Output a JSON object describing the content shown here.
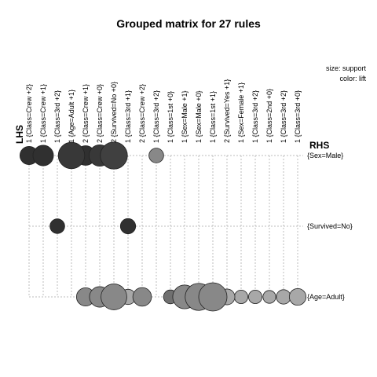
{
  "chart_data": {
    "type": "grouped_matrix_bubble",
    "title": "Grouped matrix for 27 rules",
    "lhs_label": "LHS",
    "rhs_label": "RHS",
    "legend": {
      "size": "size: support",
      "color": "color: lift"
    },
    "lhs_groups": [
      "1 {Class=Crew +2}",
      "1 {Class=Crew +1}",
      "1 {Class=3rd +2}",
      "1 {Age=Adult +1}",
      "2 {Class=Crew +1}",
      "2 {Class=Crew +0}",
      "2 {Survived=No +0}",
      "1 {Class=3rd +1}",
      "2 {Class=Crew +2}",
      "1 {Class=3rd +2}",
      "1 {Class=1st +0}",
      "1 {Sex=Male +1}",
      "1 {Sex=Male +0}",
      "1 {Class=1st +1}",
      "2 {Survived=Yes +1}",
      "1 {Sex=Female +1}",
      "1 {Class=3rd +2}",
      "1 {Class=2nd +0}",
      "1 {Class=3rd +2}",
      "1 {Class=3rd +0}"
    ],
    "rhs_items": [
      "{Sex=Male}",
      "{Survived=No}",
      "{Age=Adult}"
    ],
    "cells": [
      {
        "lhs": 0,
        "rhs": 0,
        "support": 0.33,
        "lift": 0.95
      },
      {
        "lhs": 1,
        "rhs": 0,
        "support": 0.45,
        "lift": 0.95
      },
      {
        "lhs": 3,
        "rhs": 0,
        "support": 0.85,
        "lift": 0.9
      },
      {
        "lhs": 4,
        "rhs": 0,
        "support": 0.4,
        "lift": 0.95
      },
      {
        "lhs": 5,
        "rhs": 0,
        "support": 0.5,
        "lift": 0.9
      },
      {
        "lhs": 6,
        "rhs": 0,
        "support": 0.9,
        "lift": 0.85
      },
      {
        "lhs": 9,
        "rhs": 0,
        "support": 0.18,
        "lift": 0.4
      },
      {
        "lhs": 2,
        "rhs": 1,
        "support": 0.18,
        "lift": 0.95
      },
      {
        "lhs": 7,
        "rhs": 1,
        "support": 0.2,
        "lift": 0.95
      },
      {
        "lhs": 4,
        "rhs": 2,
        "support": 0.33,
        "lift": 0.4
      },
      {
        "lhs": 5,
        "rhs": 2,
        "support": 0.45,
        "lift": 0.4
      },
      {
        "lhs": 6,
        "rhs": 2,
        "support": 0.8,
        "lift": 0.4
      },
      {
        "lhs": 7,
        "rhs": 2,
        "support": 0.2,
        "lift": 0.2
      },
      {
        "lhs": 8,
        "rhs": 2,
        "support": 0.35,
        "lift": 0.4
      },
      {
        "lhs": 10,
        "rhs": 2,
        "support": 0.15,
        "lift": 0.55
      },
      {
        "lhs": 11,
        "rhs": 2,
        "support": 0.65,
        "lift": 0.4
      },
      {
        "lhs": 12,
        "rhs": 2,
        "support": 0.9,
        "lift": 0.4
      },
      {
        "lhs": 13,
        "rhs": 2,
        "support": 1.0,
        "lift": 0.4
      },
      {
        "lhs": 14,
        "rhs": 2,
        "support": 0.22,
        "lift": 0.2
      },
      {
        "lhs": 15,
        "rhs": 2,
        "support": 0.14,
        "lift": 0.2
      },
      {
        "lhs": 16,
        "rhs": 2,
        "support": 0.14,
        "lift": 0.2
      },
      {
        "lhs": 17,
        "rhs": 2,
        "support": 0.12,
        "lift": 0.2
      },
      {
        "lhs": 18,
        "rhs": 2,
        "support": 0.17,
        "lift": 0.2
      },
      {
        "lhs": 19,
        "rhs": 2,
        "support": 0.26,
        "lift": 0.2
      }
    ],
    "grid": true
  }
}
